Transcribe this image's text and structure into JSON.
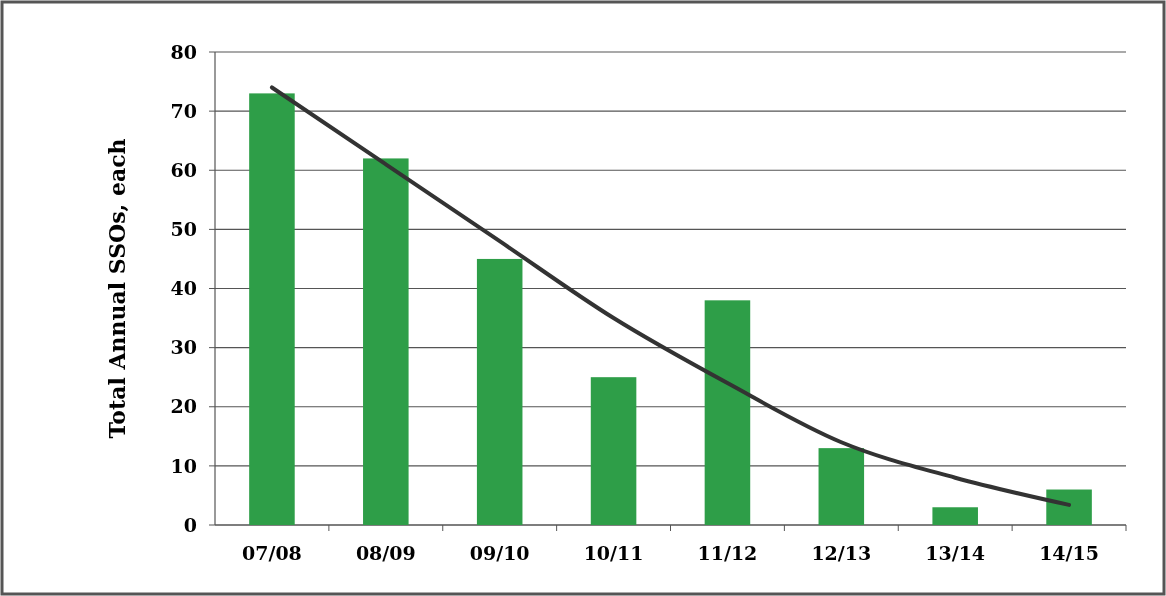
{
  "chart_data": {
    "type": "bar",
    "ylabel": "Total Annual SSOs, each",
    "categories": [
      "07/08",
      "08/09",
      "09/10",
      "10/11",
      "11/12",
      "12/13",
      "13/14",
      "14/15"
    ],
    "series": [
      {
        "color": "#2e9e48",
        "values": [
          73,
          62,
          45,
          25,
          38,
          13,
          3,
          6
        ]
      },
      {
        "type": "line",
        "color": "#333333",
        "values": [
          74,
          61,
          48,
          35,
          24,
          14,
          8,
          3.4
        ]
      }
    ],
    "ylim": [
      0,
      80
    ],
    "yticks": [
      0,
      10,
      20,
      30,
      40,
      50,
      60,
      70,
      80
    ],
    "grid": "y"
  }
}
